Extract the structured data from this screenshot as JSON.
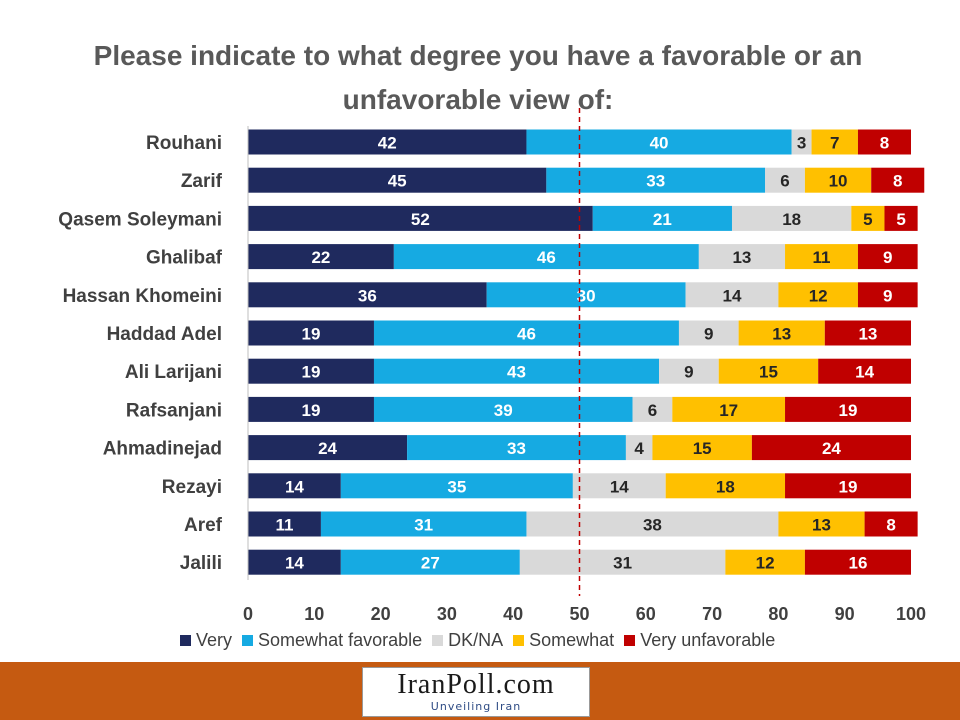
{
  "chart_data": {
    "type": "bar",
    "orientation": "horizontal",
    "stacked": true,
    "title": "Please indicate to what degree you have a favorable or an unfavorable view of:",
    "categories": [
      "Rouhani",
      "Zarif",
      "Qasem Soleymani",
      "Ghalibaf",
      "Hassan Khomeini",
      "Haddad Adel",
      "Ali Larijani",
      "Rafsanjani",
      "Ahmadinejad",
      "Rezayi",
      "Aref",
      "Jalili"
    ],
    "series": [
      {
        "name": "Very",
        "color": "#1f2a5e",
        "values": [
          42,
          45,
          52,
          22,
          36,
          19,
          19,
          19,
          24,
          14,
          11,
          14
        ]
      },
      {
        "name": "Somewhat favorable",
        "color": "#16aae2",
        "values": [
          40,
          33,
          21,
          46,
          30,
          46,
          43,
          39,
          33,
          35,
          31,
          27
        ]
      },
      {
        "name": "DK/NA",
        "color": "#d9d9d9",
        "values": [
          3,
          6,
          18,
          13,
          14,
          9,
          9,
          6,
          4,
          14,
          38,
          31
        ]
      },
      {
        "name": "Somewhat",
        "color": "#ffc000",
        "values": [
          7,
          10,
          5,
          11,
          12,
          13,
          15,
          17,
          15,
          18,
          13,
          12
        ]
      },
      {
        "name": "Very unfavorable",
        "color": "#c00000",
        "values": [
          8,
          8,
          5,
          9,
          9,
          13,
          14,
          19,
          24,
          19,
          8,
          16
        ]
      }
    ],
    "xlim": [
      0,
      100
    ],
    "xticks": [
      "0",
      "10",
      "20",
      "30",
      "40",
      "50",
      "60",
      "70",
      "80",
      "90",
      "100"
    ],
    "reference_line": 50,
    "grid": false,
    "legend_position": "bottom"
  },
  "footer": {
    "logo_text": "IranPoll.com",
    "logo_tagline": "Unveiling Iran",
    "bar_color": "#c55a11"
  }
}
